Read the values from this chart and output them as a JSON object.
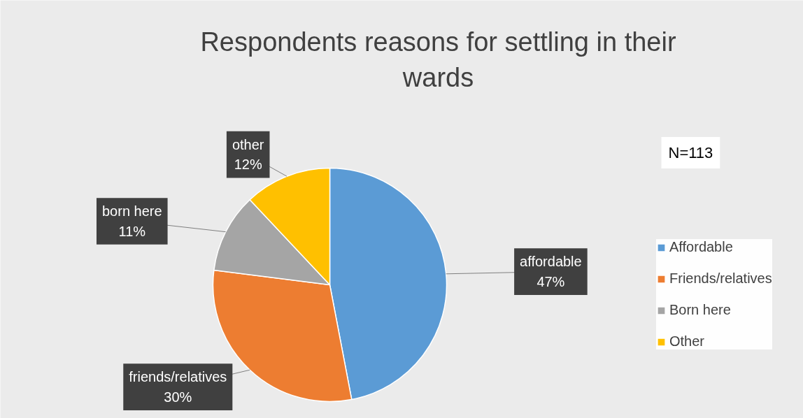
{
  "chart_data": {
    "type": "pie",
    "title": "Respondents reasons for settling in their\nwards",
    "categories": [
      "Affordable",
      "Friends/relatives",
      "Born here",
      "Other"
    ],
    "values": [
      47,
      30,
      11,
      12
    ],
    "colors": [
      "#5b9bd5",
      "#ed7d31",
      "#a5a5a5",
      "#ffc000"
    ],
    "value_labels": [
      "affordable\n47%",
      "friends/relatives\n30%",
      "born here\n11%",
      "other\n12%"
    ],
    "annotations": [
      "N=113"
    ],
    "legend": "right"
  }
}
